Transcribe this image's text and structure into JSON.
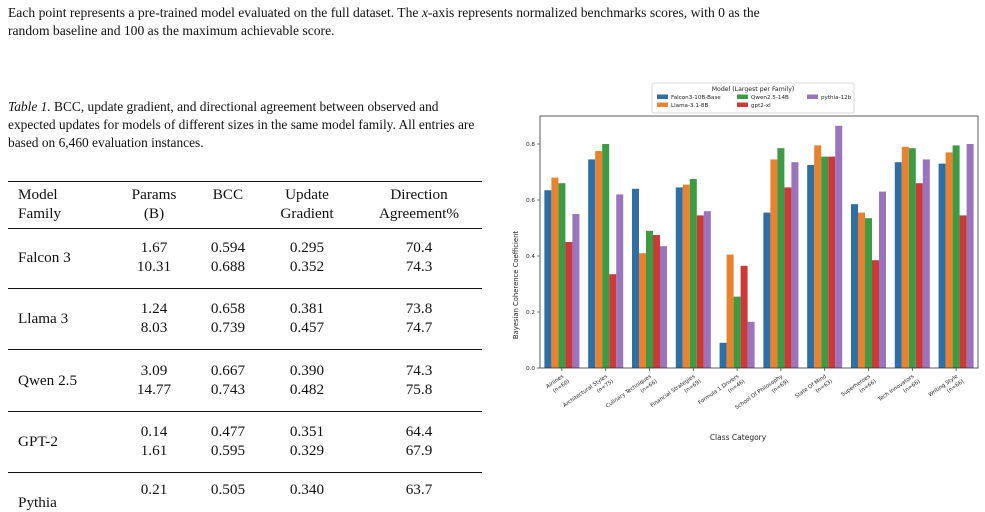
{
  "top_caption": {
    "line1_pre": "Each point represents a pre-trained model evaluated on the full dataset. The ",
    "line1_x": "x",
    "line1_post": "-axis represents normalized benchmarks scores, with 0 as the",
    "line2": "random baseline and 100 as the maximum achievable score."
  },
  "table": {
    "caption_label": "Table 1.",
    "caption_text": " BCC, update gradient, and directional agreement between observed and expected updates for models of different sizes in the same model family. All entries are based on 6,460 evaluation instances.",
    "headers": {
      "family": [
        "Model",
        "Family"
      ],
      "params": [
        "Params",
        "(B)"
      ],
      "bcc": [
        "BCC",
        ""
      ],
      "update": [
        "Update",
        "Gradient"
      ],
      "direction": [
        "Direction",
        "Agreement%"
      ]
    },
    "groups": [
      {
        "family": "Falcon 3",
        "rows": [
          [
            "1.67",
            "0.594",
            "0.295",
            "70.4"
          ],
          [
            "10.31",
            "0.688",
            "0.352",
            "74.3"
          ]
        ]
      },
      {
        "family": "Llama 3",
        "rows": [
          [
            "1.24",
            "0.658",
            "0.381",
            "73.8"
          ],
          [
            "8.03",
            "0.739",
            "0.457",
            "74.7"
          ]
        ]
      },
      {
        "family": "Qwen 2.5",
        "rows": [
          [
            "3.09",
            "0.667",
            "0.390",
            "74.3"
          ],
          [
            "14.77",
            "0.743",
            "0.482",
            "75.8"
          ]
        ]
      },
      {
        "family": "GPT-2",
        "rows": [
          [
            "0.14",
            "0.477",
            "0.351",
            "64.4"
          ],
          [
            "1.61",
            "0.595",
            "0.329",
            "67.9"
          ]
        ]
      },
      {
        "family": "Pythia",
        "rows": [
          [
            "0.21",
            "0.505",
            "0.340",
            "63.7"
          ]
        ]
      }
    ]
  },
  "chart_data": {
    "type": "bar",
    "title": "",
    "legend_title": "Model (Largest per Family)",
    "legend_position": "top-center",
    "xlabel": "Class Category",
    "ylabel": "Bayesian Coherence Coefficient",
    "ylim": [
      0,
      0.9
    ],
    "yticks": [
      "0.0",
      "0.2",
      "0.4",
      "0.6",
      "0.8"
    ],
    "grid": false,
    "categories": [
      {
        "name": "Airlines",
        "n": "(n=60)"
      },
      {
        "name": "Architectural Styles",
        "n": "(n=75)"
      },
      {
        "name": "Culinary Techniques",
        "n": "(n=66)"
      },
      {
        "name": "Financial Strategies",
        "n": "(n=69)"
      },
      {
        "name": "Formula 1 Drivers",
        "n": "(n=46)"
      },
      {
        "name": "School Of Philosophy",
        "n": "(n=69)"
      },
      {
        "name": "State Of Mind",
        "n": "(n=63)"
      },
      {
        "name": "Superheroes",
        "n": "(n=66)"
      },
      {
        "name": "Tech Innovators",
        "n": "(n=66)"
      },
      {
        "name": "Writing Style",
        "n": "(n=66)"
      }
    ],
    "series": [
      {
        "name": "Falcon3-10B-Base",
        "color": "#2e6fa6",
        "values": [
          0.635,
          0.745,
          0.64,
          0.645,
          0.09,
          0.555,
          0.725,
          0.585,
          0.735,
          0.73
        ]
      },
      {
        "name": "Llama-3.1-8B",
        "color": "#e9822f",
        "values": [
          0.68,
          0.775,
          0.41,
          0.655,
          0.405,
          0.745,
          0.795,
          0.555,
          0.79,
          0.77
        ]
      },
      {
        "name": "Qwen2.5-14B",
        "color": "#3e9a43",
        "values": [
          0.66,
          0.8,
          0.49,
          0.675,
          0.255,
          0.785,
          0.755,
          0.535,
          0.785,
          0.795
        ]
      },
      {
        "name": "gpt2-xl",
        "color": "#c93a38",
        "values": [
          0.45,
          0.335,
          0.475,
          0.545,
          0.365,
          0.645,
          0.755,
          0.385,
          0.66,
          0.545
        ]
      },
      {
        "name": "pythia-12b",
        "color": "#9b74be",
        "values": [
          0.55,
          0.62,
          0.435,
          0.56,
          0.165,
          0.735,
          0.865,
          0.63,
          0.745,
          0.8
        ]
      }
    ]
  }
}
